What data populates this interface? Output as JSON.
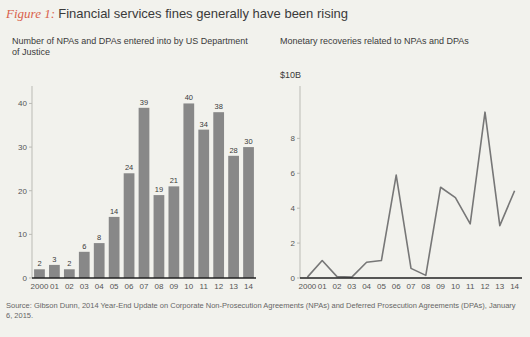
{
  "chart_data": [
    {
      "type": "bar",
      "title": "Figure 1: Financial services fines generally have been rising",
      "subtitle": "Number of NPAs and DPAs entered into by US Department of Justice",
      "categories": [
        "2000",
        "01",
        "02",
        "03",
        "04",
        "05",
        "06",
        "07",
        "08",
        "09",
        "10",
        "11",
        "12",
        "13",
        "14"
      ],
      "values": [
        2,
        3,
        2,
        6,
        8,
        14,
        24,
        39,
        19,
        21,
        40,
        34,
        38,
        28,
        30
      ],
      "color": "#888888",
      "ylim": [
        0,
        44
      ],
      "yticks": [
        0,
        10,
        20,
        30,
        40
      ],
      "grid": false,
      "data_labels": true,
      "annotations": [
        "Source: Gibson Dunn, 2014 Year-End Update on Corporate Non-Prosecution Agreements (NPAs) and Deferred Prosecution Agreements (DPAs), January 6, 2015."
      ]
    },
    {
      "type": "line",
      "subtitle": "Monetary recoveries related to NPAs and DPAs",
      "ylabel": "$10B",
      "categories": [
        "2000",
        "01",
        "02",
        "03",
        "04",
        "05",
        "06",
        "07",
        "08",
        "09",
        "10",
        "11",
        "12",
        "13",
        "14"
      ],
      "values": [
        0.05,
        1.0,
        0.08,
        0.05,
        0.9,
        1.0,
        5.9,
        0.55,
        0.15,
        5.2,
        4.6,
        3.1,
        9.5,
        3.0,
        5.0
      ],
      "color": "#777777",
      "ylim": [
        0,
        11
      ],
      "yticks": [
        0,
        2,
        4,
        6,
        8
      ],
      "grid": false
    }
  ]
}
